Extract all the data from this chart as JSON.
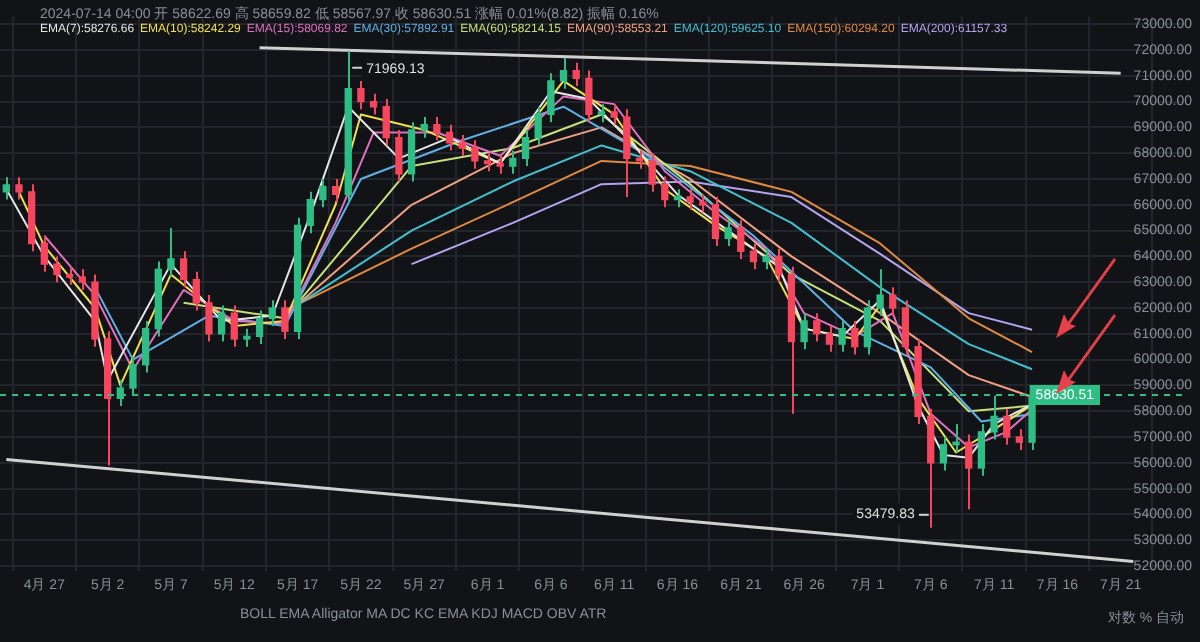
{
  "chart_data": {
    "type": "candlestick",
    "x": [
      "2024-04-24",
      "2024-04-25",
      "2024-04-26",
      "2024-04-27",
      "2024-04-28",
      "2024-04-29",
      "2024-04-30",
      "2024-05-01",
      "2024-05-02",
      "2024-05-03",
      "2024-05-04",
      "2024-05-05",
      "2024-05-06",
      "2024-05-07",
      "2024-05-08",
      "2024-05-09",
      "2024-05-10",
      "2024-05-11",
      "2024-05-12",
      "2024-05-13",
      "2024-05-14",
      "2024-05-15",
      "2024-05-16",
      "2024-05-17",
      "2024-05-18",
      "2024-05-19",
      "2024-05-20",
      "2024-05-21",
      "2024-05-22",
      "2024-05-23",
      "2024-05-24",
      "2024-05-25",
      "2024-05-26",
      "2024-05-27",
      "2024-05-28",
      "2024-05-29",
      "2024-05-30",
      "2024-05-31",
      "2024-06-01",
      "2024-06-02",
      "2024-06-03",
      "2024-06-04",
      "2024-06-05",
      "2024-06-06",
      "2024-06-07",
      "2024-06-08",
      "2024-06-09",
      "2024-06-10",
      "2024-06-11",
      "2024-06-12",
      "2024-06-13",
      "2024-06-14",
      "2024-06-15",
      "2024-06-16",
      "2024-06-17",
      "2024-06-18",
      "2024-06-19",
      "2024-06-20",
      "2024-06-21",
      "2024-06-22",
      "2024-06-23",
      "2024-06-24",
      "2024-06-25",
      "2024-06-26",
      "2024-06-27",
      "2024-06-28",
      "2024-06-29",
      "2024-06-30",
      "2024-07-01",
      "2024-07-02",
      "2024-07-03",
      "2024-07-04",
      "2024-07-05",
      "2024-07-06",
      "2024-07-07",
      "2024-07-08",
      "2024-07-09",
      "2024-07-10",
      "2024-07-11",
      "2024-07-12",
      "2024-07-13",
      "2024-07-14"
    ],
    "ohlc": [
      [
        66500,
        67070,
        66200,
        66770
      ],
      [
        66770,
        67070,
        66200,
        66500
      ],
      [
        66500,
        66800,
        64200,
        64500
      ],
      [
        64500,
        64800,
        63400,
        63700
      ],
      [
        63700,
        64000,
        63000,
        63300
      ],
      [
        63300,
        63600,
        62900,
        63200
      ],
      [
        63200,
        63500,
        62700,
        63000
      ],
      [
        63000,
        63300,
        60500,
        60800
      ],
      [
        60800,
        61100,
        55900,
        58500
      ],
      [
        58500,
        59200,
        58200,
        58900
      ],
      [
        58900,
        60100,
        58600,
        59800
      ],
      [
        59800,
        61500,
        59500,
        61200
      ],
      [
        61200,
        63800,
        60900,
        63500
      ],
      [
        63500,
        65100,
        63200,
        63900
      ],
      [
        63900,
        64200,
        62800,
        63100
      ],
      [
        63100,
        63400,
        61900,
        62200
      ],
      [
        62200,
        62500,
        60700,
        61000
      ],
      [
        61000,
        62100,
        60700,
        61800
      ],
      [
        61800,
        62100,
        60500,
        60800
      ],
      [
        60800,
        61200,
        60500,
        60900
      ],
      [
        60900,
        61900,
        60600,
        61600
      ],
      [
        61600,
        62300,
        61300,
        62000
      ],
      [
        62000,
        62300,
        60800,
        61100
      ],
      [
        61100,
        65500,
        60800,
        65200
      ],
      [
        65200,
        66500,
        64900,
        66200
      ],
      [
        66200,
        67000,
        65900,
        66700
      ],
      [
        66700,
        67000,
        66100,
        66400
      ],
      [
        66400,
        71969.13,
        66100,
        70500
      ],
      [
        70500,
        70800,
        69700,
        70000
      ],
      [
        70000,
        70300,
        69500,
        69800
      ],
      [
        69800,
        70100,
        68300,
        68600
      ],
      [
        68600,
        68900,
        66900,
        67200
      ],
      [
        67200,
        69200,
        66900,
        68900
      ],
      [
        68900,
        69400,
        68600,
        69100
      ],
      [
        69100,
        69400,
        68500,
        68800
      ],
      [
        68800,
        69100,
        68100,
        68400
      ],
      [
        68400,
        68700,
        67900,
        68200
      ],
      [
        68200,
        68500,
        67400,
        67700
      ],
      [
        67700,
        68000,
        67300,
        67600
      ],
      [
        67600,
        67900,
        67200,
        67500
      ],
      [
        67500,
        68100,
        67200,
        67800
      ],
      [
        67800,
        68900,
        67500,
        68600
      ],
      [
        68600,
        69800,
        68300,
        69500
      ],
      [
        69500,
        71100,
        69200,
        70800
      ],
      [
        70800,
        71700,
        70500,
        71200
      ],
      [
        71200,
        71500,
        70600,
        70900
      ],
      [
        70900,
        71200,
        69200,
        69500
      ],
      [
        69500,
        69900,
        69200,
        69600
      ],
      [
        69600,
        69900,
        69100,
        69400
      ],
      [
        69400,
        69700,
        66300,
        67800
      ],
      [
        67800,
        68100,
        67400,
        67700
      ],
      [
        67700,
        68000,
        66500,
        66800
      ],
      [
        66800,
        67100,
        65900,
        66200
      ],
      [
        66200,
        66600,
        65900,
        66300
      ],
      [
        66300,
        66600,
        65800,
        66100
      ],
      [
        66100,
        66400,
        65700,
        66000
      ],
      [
        66000,
        66300,
        64400,
        64700
      ],
      [
        64700,
        65400,
        64400,
        65100
      ],
      [
        65100,
        65400,
        63900,
        64200
      ],
      [
        64200,
        64500,
        63500,
        63800
      ],
      [
        63800,
        64300,
        63500,
        64000
      ],
      [
        64000,
        64300,
        63000,
        63300
      ],
      [
        63300,
        63600,
        57900,
        60700
      ],
      [
        60700,
        61800,
        60400,
        61500
      ],
      [
        61500,
        61800,
        60700,
        61000
      ],
      [
        61000,
        61300,
        60300,
        60600
      ],
      [
        60600,
        61500,
        60300,
        61200
      ],
      [
        61200,
        61500,
        60200,
        60500
      ],
      [
        60500,
        62300,
        60200,
        62000
      ],
      [
        62000,
        63500,
        61700,
        62500
      ],
      [
        62500,
        62800,
        61700,
        62000
      ],
      [
        62000,
        62300,
        60200,
        60500
      ],
      [
        60500,
        60800,
        57500,
        57800
      ],
      [
        57800,
        58100,
        53479.83,
        56000
      ],
      [
        56000,
        57000,
        55700,
        56700
      ],
      [
        56700,
        57500,
        56400,
        56800
      ],
      [
        56800,
        57100,
        54200,
        55800
      ],
      [
        55800,
        57500,
        55500,
        57200
      ],
      [
        57200,
        58600,
        56900,
        57800
      ],
      [
        57800,
        58100,
        56700,
        57000
      ],
      [
        57000,
        57300,
        56500,
        56800
      ],
      [
        56800,
        58900,
        56500,
        58630.51
      ]
    ],
    "series": [
      {
        "type": "line",
        "name": "EMA(7):58276.66",
        "color": "#e6e6e6",
        "x": [
          "2024-04-24",
          "2024-04-27",
          "2024-05-01",
          "2024-05-02",
          "2024-05-07",
          "2024-05-11",
          "2024-05-15",
          "2024-05-18",
          "2024-05-21",
          "2024-05-25",
          "2024-05-29",
          "2024-06-02",
          "2024-06-06",
          "2024-06-09",
          "2024-06-12",
          "2024-06-16",
          "2024-06-20",
          "2024-06-24",
          "2024-06-26",
          "2024-06-29",
          "2024-07-02",
          "2024-07-05",
          "2024-07-07",
          "2024-07-09",
          "2024-07-11",
          "2024-07-14"
        ],
        "values": [
          66600,
          64000,
          61500,
          59200,
          63700,
          61500,
          61700,
          65600,
          69800,
          67800,
          68600,
          67600,
          70400,
          70100,
          68600,
          66400,
          65000,
          63600,
          61200,
          60900,
          62300,
          58200,
          56300,
          56200,
          57500,
          58276.66
        ]
      },
      {
        "type": "line",
        "name": "EMA(10):58242.29",
        "color": "#f0e04a",
        "x": [
          "2024-04-25",
          "2024-04-27",
          "2024-05-01",
          "2024-05-03",
          "2024-05-07",
          "2024-05-12",
          "2024-05-16",
          "2024-05-20",
          "2024-05-22",
          "2024-05-27",
          "2024-06-02",
          "2024-06-07",
          "2024-06-11",
          "2024-06-15",
          "2024-06-19",
          "2024-06-23",
          "2024-06-26",
          "2024-06-30",
          "2024-07-02",
          "2024-07-05",
          "2024-07-08",
          "2024-07-11",
          "2024-07-14"
        ],
        "values": [
          66500,
          64400,
          62000,
          59000,
          63300,
          61300,
          61500,
          66000,
          69500,
          68900,
          67600,
          70800,
          69500,
          66600,
          65200,
          64000,
          61200,
          60800,
          62100,
          58500,
          56400,
          57300,
          58242.29
        ]
      },
      {
        "type": "line",
        "name": "EMA(15):58069.82",
        "color": "#e070c0",
        "x": [
          "2024-04-27",
          "2024-05-01",
          "2024-05-04",
          "2024-05-08",
          "2024-05-12",
          "2024-05-16",
          "2024-05-20",
          "2024-05-23",
          "2024-05-28",
          "2024-06-02",
          "2024-06-07",
          "2024-06-11",
          "2024-06-15",
          "2024-06-19",
          "2024-06-23",
          "2024-06-26",
          "2024-06-30",
          "2024-07-03",
          "2024-07-06",
          "2024-07-09",
          "2024-07-12",
          "2024-07-14"
        ],
        "values": [
          64800,
          62500,
          59600,
          62700,
          61500,
          61400,
          65300,
          68800,
          68800,
          67900,
          70200,
          69900,
          67300,
          65700,
          64300,
          61800,
          60900,
          61800,
          57900,
          56600,
          57200,
          58069.82
        ]
      },
      {
        "type": "line",
        "name": "EMA(30):57892.91",
        "color": "#5fb0e6",
        "x": [
          "2024-05-01",
          "2024-05-04",
          "2024-05-10",
          "2024-05-16",
          "2024-05-22",
          "2024-05-30",
          "2024-06-07",
          "2024-06-14",
          "2024-06-22",
          "2024-06-30",
          "2024-07-06",
          "2024-07-10",
          "2024-07-14"
        ],
        "values": [
          62800,
          60000,
          61700,
          61300,
          67000,
          68500,
          69800,
          67800,
          64800,
          61100,
          59700,
          57600,
          57892.91
        ]
      },
      {
        "type": "line",
        "name": "EMA(60):58214.15",
        "color": "#c6e07a",
        "x": [
          "2024-05-08",
          "2024-05-16",
          "2024-05-26",
          "2024-06-03",
          "2024-06-10",
          "2024-06-17",
          "2024-06-25",
          "2024-07-02",
          "2024-07-09",
          "2024-07-14"
        ],
        "values": [
          62200,
          61600,
          67500,
          68200,
          69500,
          66800,
          63300,
          61500,
          58000,
          58214.15
        ]
      },
      {
        "type": "line",
        "name": "EMA(90):58553.21",
        "color": "#f0a080",
        "x": [
          "2024-05-16",
          "2024-05-26",
          "2024-06-03",
          "2024-06-10",
          "2024-06-17",
          "2024-06-25",
          "2024-07-02",
          "2024-07-09",
          "2024-07-14"
        ],
        "values": [
          61700,
          66000,
          68000,
          69000,
          67000,
          64000,
          61800,
          59400,
          58553.21
        ]
      },
      {
        "type": "line",
        "name": "EMA(120):59625.10",
        "color": "#40c0d0",
        "x": [
          "2024-05-16",
          "2024-05-26",
          "2024-06-03",
          "2024-06-10",
          "2024-06-17",
          "2024-06-25",
          "2024-07-02",
          "2024-07-09",
          "2024-07-14"
        ],
        "values": [
          61800,
          65000,
          66900,
          68300,
          67300,
          65300,
          62800,
          60600,
          59625.1
        ]
      },
      {
        "type": "line",
        "name": "EMA(150):60294.20",
        "color": "#e08a40",
        "x": [
          "2024-05-16",
          "2024-05-26",
          "2024-06-03",
          "2024-06-10",
          "2024-06-17",
          "2024-06-25",
          "2024-07-02",
          "2024-07-09",
          "2024-07-14"
        ],
        "values": [
          61900,
          64300,
          66100,
          67700,
          67500,
          66500,
          64500,
          61600,
          60294.2
        ]
      },
      {
        "type": "line",
        "name": "EMA(200):61157.33",
        "color": "#b4a4f0",
        "x": [
          "2024-05-26",
          "2024-06-03",
          "2024-06-10",
          "2024-06-17",
          "2024-06-25",
          "2024-07-02",
          "2024-07-09",
          "2024-07-14"
        ],
        "values": [
          63700,
          65300,
          66800,
          66900,
          66300,
          64100,
          61800,
          61157.33
        ]
      },
      {
        "type": "line",
        "color": "#d0d0d0",
        "x": [
          "2024-05-14",
          "2024-07-21"
        ],
        "values": [
          72088,
          71100
        ]
      },
      {
        "type": "line",
        "color": "#d0d0d0",
        "x": [
          "2024-04-24",
          "2024-07-22"
        ],
        "values": [
          56130,
          52180
        ]
      }
    ],
    "xlim": [
      "2024-04-23T12:00",
      "2024-07-26"
    ],
    "xticks": [
      {
        "value": "2024-04-27",
        "label": "4月 27"
      },
      {
        "value": "2024-05-02",
        "label": "5月 2"
      },
      {
        "value": "2024-05-07",
        "label": "5月 7"
      },
      {
        "value": "2024-05-12",
        "label": "5月 12"
      },
      {
        "value": "2024-05-17",
        "label": "5月 17"
      },
      {
        "value": "2024-05-22",
        "label": "5月 22"
      },
      {
        "value": "2024-05-27",
        "label": "5月 27"
      },
      {
        "value": "2024-06-01",
        "label": "6月 1"
      },
      {
        "value": "2024-06-06",
        "label": "6月 6"
      },
      {
        "value": "2024-06-11",
        "label": "6月 11"
      },
      {
        "value": "2024-06-16",
        "label": "6月 16"
      },
      {
        "value": "2024-06-21",
        "label": "6月 21"
      },
      {
        "value": "2024-06-26",
        "label": "6月 26"
      },
      {
        "value": "2024-07-01",
        "label": "7月 1"
      },
      {
        "value": "2024-07-06",
        "label": "7月 6"
      },
      {
        "value": "2024-07-11",
        "label": "7月 11"
      },
      {
        "value": "2024-07-16",
        "label": "7月 16"
      },
      {
        "value": "2024-07-21",
        "label": "7月 21"
      }
    ],
    "ylim": [
      51800,
      73300
    ],
    "yticks": [
      {
        "value": 52000,
        "label": "52000.00"
      },
      {
        "value": 53000,
        "label": "53000.00"
      },
      {
        "value": 54000,
        "label": "54000.00"
      },
      {
        "value": 55000,
        "label": "55000.00"
      },
      {
        "value": 56000,
        "label": "56000.00"
      },
      {
        "value": 57000,
        "label": "57000.00"
      },
      {
        "value": 58000,
        "label": "58000.00"
      },
      {
        "value": 59000,
        "label": "59000.00"
      },
      {
        "value": 60000,
        "label": "60000.00"
      },
      {
        "value": 61000,
        "label": "61000.00"
      },
      {
        "value": 62000,
        "label": "62000.00"
      },
      {
        "value": 63000,
        "label": "63000.00"
      },
      {
        "value": 64000,
        "label": "64000.00"
      },
      {
        "value": 65000,
        "label": "65000.00"
      },
      {
        "value": 66000,
        "label": "66000.00"
      },
      {
        "value": 67000,
        "label": "67000.00"
      },
      {
        "value": 68000,
        "label": "68000.00"
      },
      {
        "value": 69000,
        "label": "69000.00"
      },
      {
        "value": 70000,
        "label": "70000.00"
      },
      {
        "value": 71000,
        "label": "71000.00"
      },
      {
        "value": 72000,
        "label": "72000.00"
      },
      {
        "value": 73000,
        "label": "73000.00"
      }
    ],
    "grid": true,
    "legend": "top left",
    "marker": "none",
    "ref_lines": [
      {
        "axis": "y",
        "value": 58630.51,
        "label": "58630.51",
        "color": "#2ebd85",
        "line_style": "dashed"
      }
    ],
    "annotations": [
      "2024-07-14 04:00 开 58622.69 高 58659.82 低 58567.97 收 58630.51 涨幅 0.01%(8.82) 振幅 0.16%",
      "BOLL EMA Alligator MA DC KC EMA KDJ MACD OBV ATR",
      "对数 % 自动",
      {
        "text": "71969.13",
        "x": "2024-05-21",
        "y": 71969.13
      },
      {
        "text": "53479.83",
        "x": "2024-07-06",
        "y": 53479.83
      }
    ]
  }
}
